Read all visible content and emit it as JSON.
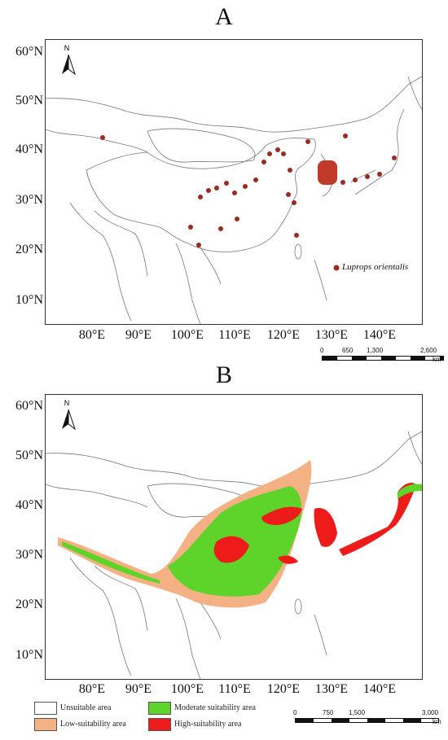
{
  "panel_a": {
    "letter": "A",
    "lat_labels": [
      "60°N",
      "50°N",
      "40°N",
      "30°N",
      "20°N",
      "10°N"
    ],
    "lon_labels": [
      "80°E",
      "90°E",
      "100°E",
      "110°E",
      "120°E",
      "130°E",
      "140°E"
    ],
    "north": "N",
    "legend_label": "Luprops orientalis",
    "legend_color": "#9b2a1f",
    "scalebar": [
      "0",
      "650",
      "1,300",
      "2,600"
    ],
    "scalebar_unit": "km"
  },
  "panel_b": {
    "letter": "B",
    "lat_labels": [
      "60°N",
      "50°N",
      "40°N",
      "30°N",
      "20°N",
      "10°N"
    ],
    "lon_labels": [
      "80°E",
      "90°E",
      "100°E",
      "110°E",
      "120°E",
      "130°E",
      "140°E"
    ],
    "north": "N",
    "legend": [
      {
        "label": "Unsuitable area",
        "color": "#ffffff"
      },
      {
        "label": "Low-suitability area",
        "color": "#f4b183"
      },
      {
        "label": "Moderate suitability area",
        "color": "#5ed32a"
      },
      {
        "label": "High-suitability area",
        "color": "#ee1b1b"
      }
    ],
    "scalebar": [
      "0",
      "750",
      "1,500",
      "3,000"
    ],
    "scalebar_unit": "km"
  }
}
